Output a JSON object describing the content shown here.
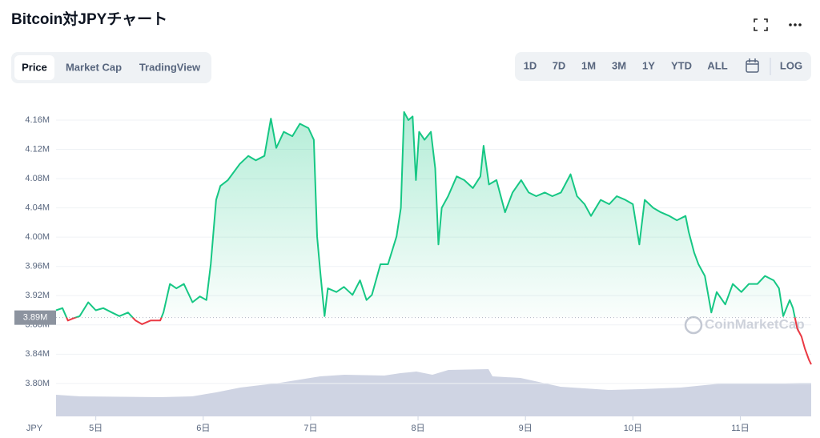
{
  "ui": {
    "title": "Bitcoin対JPYチャート",
    "tabs": [
      "Price",
      "Market Cap",
      "TradingView"
    ],
    "ranges": [
      "1D",
      "7D",
      "1M",
      "3M",
      "1Y",
      "YTD",
      "ALL"
    ],
    "log": "LOG"
  },
  "chart_data": {
    "type": "line",
    "x": [
      4.63,
      4.69,
      4.74,
      4.79,
      4.85,
      4.93,
      5.0,
      5.07,
      5.15,
      5.22,
      5.3,
      5.37,
      5.43,
      5.51,
      5.6,
      5.63,
      5.69,
      5.75,
      5.82,
      5.9,
      5.97,
      6.03,
      6.07,
      6.12,
      6.16,
      6.23,
      6.34,
      6.42,
      6.49,
      6.57,
      6.63,
      6.68,
      6.75,
      6.83,
      6.9,
      6.98,
      7.03,
      7.06,
      7.09,
      7.13,
      7.16,
      7.24,
      7.31,
      7.39,
      7.46,
      7.52,
      7.57,
      7.65,
      7.72,
      7.8,
      7.84,
      7.87,
      7.91,
      7.95,
      7.98,
      8.01,
      8.06,
      8.12,
      8.16,
      8.19,
      8.22,
      8.28,
      8.36,
      8.43,
      8.51,
      8.58,
      8.61,
      8.66,
      8.73,
      8.81,
      8.88,
      8.96,
      9.03,
      9.1,
      9.18,
      9.25,
      9.33,
      9.42,
      9.48,
      9.55,
      9.61,
      9.7,
      9.78,
      9.85,
      9.93,
      10.0,
      10.06,
      10.11,
      10.19,
      10.26,
      10.34,
      10.41,
      10.49,
      10.52,
      10.57,
      10.61,
      10.67,
      10.73,
      10.78,
      10.86,
      10.93,
      11.01,
      11.08,
      11.16,
      11.23,
      11.31,
      11.36,
      11.4,
      11.46,
      11.49,
      11.53,
      11.57,
      11.6,
      11.64,
      11.66
    ],
    "values": [
      3900000,
      3903000,
      3886000,
      3889000,
      3892000,
      3911000,
      3900000,
      3903000,
      3897000,
      3892000,
      3897000,
      3886000,
      3881000,
      3886000,
      3886000,
      3897000,
      3936000,
      3930000,
      3936000,
      3911000,
      3919000,
      3914000,
      3963000,
      4051000,
      4070000,
      4078000,
      4100000,
      4111000,
      4105000,
      4111000,
      4162000,
      4122000,
      4144000,
      4138000,
      4155000,
      4149000,
      4133000,
      4001000,
      3952000,
      3892000,
      3930000,
      3925000,
      3932000,
      3921000,
      3941000,
      3914000,
      3921000,
      3963000,
      3963000,
      4001000,
      4040000,
      4171000,
      4160000,
      4165000,
      4078000,
      4144000,
      4133000,
      4144000,
      4094000,
      3990000,
      4040000,
      4056000,
      4083000,
      4078000,
      4067000,
      4083000,
      4125000,
      4072000,
      4078000,
      4034000,
      4061000,
      4078000,
      4061000,
      4056000,
      4061000,
      4056000,
      4061000,
      4086000,
      4056000,
      4045000,
      4029000,
      4051000,
      4045000,
      4056000,
      4051000,
      4045000,
      3990000,
      4051000,
      4040000,
      4034000,
      4029000,
      4023000,
      4029000,
      4007000,
      3979000,
      3963000,
      3947000,
      3897000,
      3925000,
      3908000,
      3936000,
      3925000,
      3936000,
      3936000,
      3947000,
      3941000,
      3930000,
      3892000,
      3914000,
      3903000,
      3875000,
      3864000,
      3848000,
      3832000,
      3826000
    ],
    "color": "#16c784",
    "color_below": "#ea3943",
    "reference_line": {
      "value": 3890000,
      "label": "3.89M"
    },
    "xlim": [
      4.63,
      11.66
    ],
    "xticks": [
      {
        "value": 5,
        "label": "5日"
      },
      {
        "value": 6,
        "label": "6日"
      },
      {
        "value": 7,
        "label": "7日"
      },
      {
        "value": 8,
        "label": "8日"
      },
      {
        "value": 9,
        "label": "9日"
      },
      {
        "value": 10,
        "label": "10日"
      },
      {
        "value": 11,
        "label": "11日"
      }
    ],
    "x_axis_unit": "JPY",
    "ylim": [
      3755000,
      4195000
    ],
    "yticks": [
      {
        "value": 3800000,
        "label": "3.80M"
      },
      {
        "value": 3840000,
        "label": "3.84M"
      },
      {
        "value": 3880000,
        "label": "3.88M"
      },
      {
        "value": 3920000,
        "label": "3.92M"
      },
      {
        "value": 3960000,
        "label": "3.96M"
      },
      {
        "value": 4000000,
        "label": "4.00M"
      },
      {
        "value": 4040000,
        "label": "4.04M"
      },
      {
        "value": 4080000,
        "label": "4.08M"
      },
      {
        "value": 4120000,
        "label": "4.12M"
      },
      {
        "value": 4160000,
        "label": "4.16M"
      }
    ],
    "grid": true,
    "watermark": "CoinMarketCap"
  }
}
